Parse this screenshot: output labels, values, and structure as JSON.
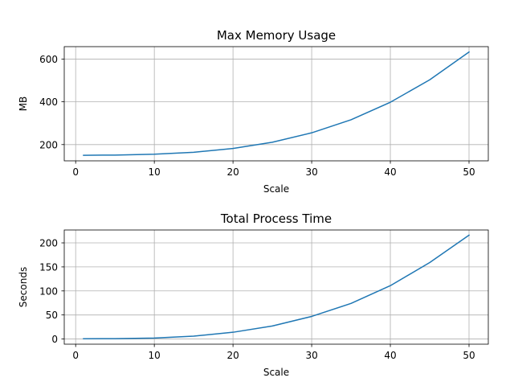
{
  "chart_data": [
    {
      "type": "line",
      "title": "Max Memory Usage",
      "xlabel": "Scale",
      "ylabel": "MB",
      "xlim": [
        -1.45,
        52.45
      ],
      "ylim": [
        124,
        658
      ],
      "xticks": [
        0,
        10,
        20,
        30,
        40,
        50
      ],
      "yticks": [
        200,
        400,
        600
      ],
      "grid": true,
      "series": [
        {
          "color": "#1f77b4",
          "x": [
            1,
            5,
            10,
            15,
            20,
            25,
            30,
            35,
            40,
            45,
            50
          ],
          "y": [
            150,
            151,
            155,
            164,
            182,
            211,
            255,
            316,
            398,
            503,
            633
          ]
        }
      ]
    },
    {
      "type": "line",
      "title": "Total Process Time",
      "xlabel": "Scale",
      "ylabel": "Seconds",
      "xlim": [
        -1.45,
        52.45
      ],
      "ylim": [
        -10.8,
        226.8
      ],
      "xticks": [
        0,
        10,
        20,
        30,
        40,
        50
      ],
      "yticks": [
        0,
        50,
        100,
        150,
        200
      ],
      "grid": true,
      "series": [
        {
          "color": "#1f77b4",
          "x": [
            1,
            5,
            10,
            15,
            20,
            25,
            30,
            35,
            40,
            45,
            50
          ],
          "y": [
            0.5,
            0.8,
            2,
            6,
            14,
            27,
            47,
            74,
            111,
            159,
            216
          ]
        }
      ]
    }
  ]
}
